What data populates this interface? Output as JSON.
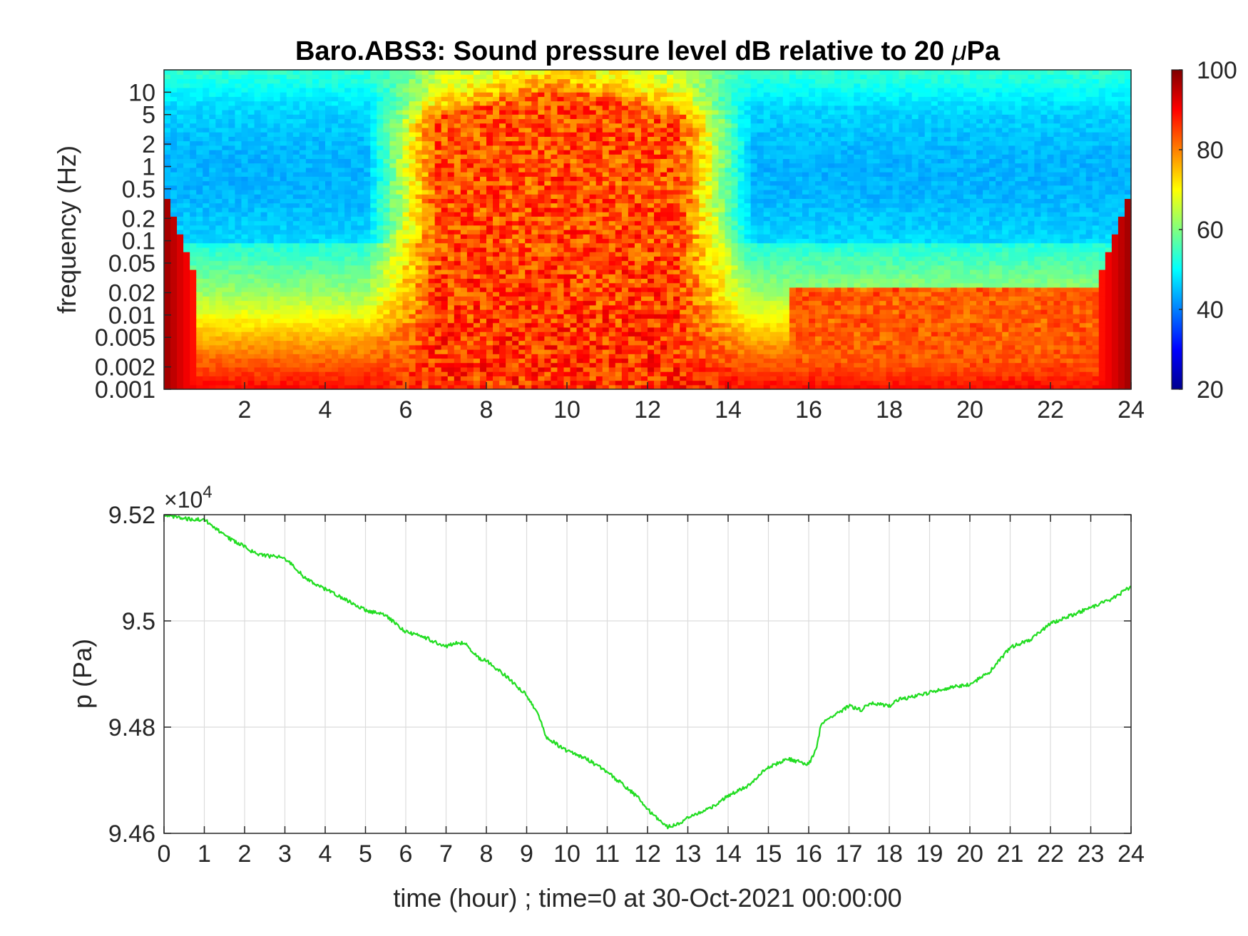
{
  "chart_data": [
    {
      "type": "heatmap",
      "title": "Baro.ABS3: Sound pressure level dB relative to 20 μPa",
      "title_prefix": "Baro.ABS3: Sound pressure level dB relative to 20 ",
      "title_mu": "μ",
      "title_suffix": "Pa",
      "ylabel": "frequency (Hz)",
      "xlabel": "",
      "y_scale": "log",
      "xlim": [
        0,
        24
      ],
      "ylim": [
        0.001,
        20
      ],
      "x_ticks": [
        2,
        4,
        6,
        8,
        10,
        12,
        14,
        16,
        18,
        20,
        22,
        24
      ],
      "x_tick_labels": [
        "2",
        "4",
        "6",
        "8",
        "10",
        "12",
        "14",
        "16",
        "18",
        "20",
        "22",
        "24"
      ],
      "y_ticks": [
        0.001,
        0.002,
        0.005,
        0.01,
        0.02,
        0.05,
        0.1,
        0.2,
        0.5,
        1,
        2,
        5,
        10
      ],
      "y_tick_labels": [
        "0.001",
        "0.002",
        "0.005",
        "0.01",
        "0.02",
        "0.05",
        "0.1",
        "0.2",
        "0.5",
        "1",
        "2",
        "5",
        "10"
      ],
      "grid": false,
      "colormap": "jet",
      "colorbar": {
        "range": [
          20,
          100
        ],
        "ticks": [
          20,
          40,
          60,
          80,
          100
        ],
        "tick_labels": [
          "20",
          "40",
          "60",
          "80",
          "100"
        ],
        "placement": "right"
      },
      "active_window_hours": [
        5,
        14.6
      ]
    },
    {
      "type": "line",
      "title": "",
      "xlabel": "time (hour) ; time=0 at 30-Oct-2021 00:00:00",
      "ylabel": "p (Pa)",
      "xlim": [
        0,
        24
      ],
      "ylim": [
        94600,
        95200
      ],
      "x_ticks": [
        0,
        1,
        2,
        3,
        4,
        5,
        6,
        7,
        8,
        9,
        10,
        11,
        12,
        13,
        14,
        15,
        16,
        17,
        18,
        19,
        20,
        21,
        22,
        23,
        24
      ],
      "x_tick_labels": [
        "0",
        "1",
        "2",
        "3",
        "4",
        "5",
        "6",
        "7",
        "8",
        "9",
        "10",
        "11",
        "12",
        "13",
        "14",
        "15",
        "16",
        "17",
        "18",
        "19",
        "20",
        "21",
        "22",
        "23",
        "24"
      ],
      "y_ticks": [
        94600,
        94800,
        95000,
        95200
      ],
      "y_tick_labels": [
        "9.46",
        "9.48",
        "9.5",
        "9.52"
      ],
      "y_multiplier_base": "×10",
      "y_multiplier_exp": "4",
      "grid": true,
      "series": [
        {
          "color": "#22dd22",
          "x": [
            0,
            0.3,
            0.6,
            1.0,
            1.2,
            1.5,
            2.0,
            2.3,
            2.6,
            2.9,
            3.2,
            3.5,
            4.0,
            4.5,
            5.0,
            5.5,
            6.0,
            6.5,
            7.0,
            7.3,
            7.5,
            7.8,
            8.0,
            8.5,
            9.0,
            9.3,
            9.5,
            10.0,
            10.5,
            11.0,
            11.5,
            11.8,
            12.0,
            12.3,
            12.5,
            12.8,
            13.0,
            13.3,
            13.6,
            14.0,
            14.5,
            15.0,
            15.5,
            16.0,
            16.2,
            16.3,
            16.5,
            17.0,
            17.3,
            17.5,
            18.0,
            18.3,
            18.5,
            19.0,
            19.5,
            20.0,
            20.5,
            21.0,
            21.5,
            22.0,
            22.5,
            23.0,
            23.5,
            24.0
          ],
          "y": [
            95200,
            95195,
            95192,
            95190,
            95180,
            95160,
            95140,
            95125,
            95122,
            95120,
            95105,
            95080,
            95060,
            95040,
            95020,
            95010,
            94980,
            94968,
            94952,
            94960,
            94955,
            94930,
            94925,
            94895,
            94860,
            94820,
            94780,
            94755,
            94740,
            94715,
            94685,
            94665,
            94645,
            94625,
            94612,
            94620,
            94630,
            94640,
            94650,
            94670,
            94690,
            94725,
            94740,
            94730,
            94760,
            94805,
            94815,
            94840,
            94832,
            94845,
            94840,
            94855,
            94855,
            94865,
            94875,
            94880,
            94905,
            94950,
            94965,
            94995,
            95010,
            95025,
            95040,
            95065
          ]
        }
      ]
    }
  ]
}
